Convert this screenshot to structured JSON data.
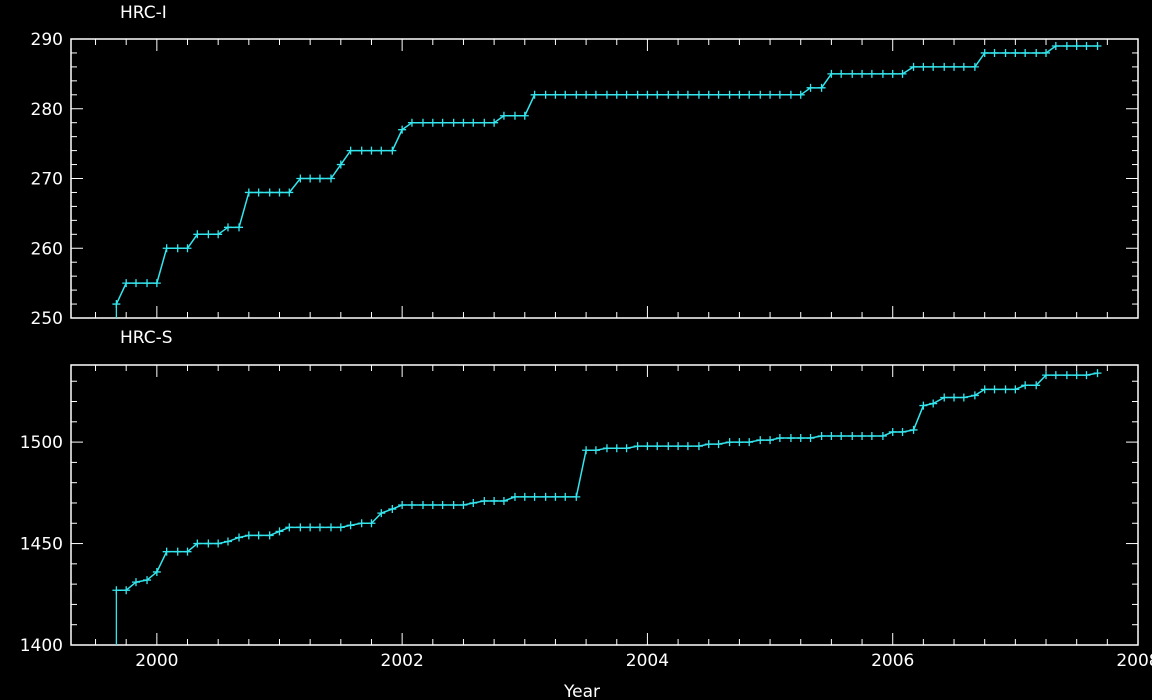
{
  "colors": {
    "background": "#000000",
    "axes": "#ffffff",
    "series": "#33e6ee"
  },
  "xlabel": "Year",
  "chart_data": [
    {
      "type": "line",
      "title": "HRC-I",
      "xlim": [
        1999.3,
        2008.0
      ],
      "ylim": [
        250,
        290
      ],
      "xticks": [
        2000,
        2002,
        2004,
        2006,
        2008
      ],
      "yticks": [
        250,
        260,
        270,
        280,
        290
      ],
      "series": [
        {
          "x": [
            1999.67,
            1999.75,
            1999.83,
            1999.92,
            2000.0,
            2000.08,
            2000.17,
            2000.25,
            2000.33,
            2000.42,
            2000.5,
            2000.58,
            2000.67,
            2000.75,
            2000.83,
            2000.92,
            2001.0,
            2001.08,
            2001.17,
            2001.25,
            2001.33,
            2001.42,
            2001.5,
            2001.58,
            2001.67,
            2001.75,
            2001.83,
            2001.92,
            2002.0,
            2002.08,
            2002.17,
            2002.25,
            2002.33,
            2002.42,
            2002.5,
            2002.58,
            2002.67,
            2002.75,
            2002.83,
            2002.92,
            2003.0,
            2003.08,
            2003.17,
            2003.25,
            2003.33,
            2003.42,
            2003.5,
            2003.58,
            2003.67,
            2003.75,
            2003.83,
            2003.92,
            2004.0,
            2004.08,
            2004.17,
            2004.25,
            2004.33,
            2004.42,
            2004.5,
            2004.58,
            2004.67,
            2004.75,
            2004.83,
            2004.92,
            2005.0,
            2005.08,
            2005.17,
            2005.25,
            2005.33,
            2005.42,
            2005.5,
            2005.58,
            2005.67,
            2005.75,
            2005.83,
            2005.92,
            2006.0,
            2006.08,
            2006.17,
            2006.25,
            2006.33,
            2006.42,
            2006.5,
            2006.58,
            2006.67,
            2006.75,
            2006.83,
            2006.92,
            2007.0,
            2007.08,
            2007.17,
            2007.25,
            2007.33,
            2007.42,
            2007.5,
            2007.58,
            2007.67
          ],
          "values": [
            252,
            255,
            255,
            255,
            255,
            260,
            260,
            260,
            262,
            262,
            262,
            263,
            263,
            268,
            268,
            268,
            268,
            268,
            270,
            270,
            270,
            270,
            272,
            274,
            274,
            274,
            274,
            274,
            277,
            278,
            278,
            278,
            278,
            278,
            278,
            278,
            278,
            278,
            279,
            279,
            279,
            282,
            282,
            282,
            282,
            282,
            282,
            282,
            282,
            282,
            282,
            282,
            282,
            282,
            282,
            282,
            282,
            282,
            282,
            282,
            282,
            282,
            282,
            282,
            282,
            282,
            282,
            282,
            283,
            283,
            285,
            285,
            285,
            285,
            285,
            285,
            285,
            285,
            286,
            286,
            286,
            286,
            286,
            286,
            286,
            288,
            288,
            288,
            288,
            288,
            288,
            288,
            289,
            289,
            289,
            289,
            289
          ]
        }
      ]
    },
    {
      "type": "line",
      "title": "HRC-S",
      "xlim": [
        1999.3,
        2008.0
      ],
      "ylim": [
        1400,
        1538
      ],
      "xticks": [
        2000,
        2002,
        2004,
        2006,
        2008
      ],
      "yticks": [
        1400,
        1450,
        1500
      ],
      "series": [
        {
          "x": [
            1999.67,
            1999.75,
            1999.83,
            1999.92,
            2000.0,
            2000.08,
            2000.17,
            2000.25,
            2000.33,
            2000.42,
            2000.5,
            2000.58,
            2000.67,
            2000.75,
            2000.83,
            2000.92,
            2001.0,
            2001.08,
            2001.17,
            2001.25,
            2001.33,
            2001.42,
            2001.5,
            2001.58,
            2001.67,
            2001.75,
            2001.83,
            2001.92,
            2002.0,
            2002.08,
            2002.17,
            2002.25,
            2002.33,
            2002.42,
            2002.5,
            2002.58,
            2002.67,
            2002.75,
            2002.83,
            2002.92,
            2003.0,
            2003.08,
            2003.17,
            2003.25,
            2003.33,
            2003.42,
            2003.5,
            2003.58,
            2003.67,
            2003.75,
            2003.83,
            2003.92,
            2004.0,
            2004.08,
            2004.17,
            2004.25,
            2004.33,
            2004.42,
            2004.5,
            2004.58,
            2004.67,
            2004.75,
            2004.83,
            2004.92,
            2005.0,
            2005.08,
            2005.17,
            2005.25,
            2005.33,
            2005.42,
            2005.5,
            2005.58,
            2005.67,
            2005.75,
            2005.83,
            2005.92,
            2006.0,
            2006.08,
            2006.17,
            2006.25,
            2006.33,
            2006.42,
            2006.5,
            2006.58,
            2006.67,
            2006.75,
            2006.83,
            2006.92,
            2007.0,
            2007.08,
            2007.17,
            2007.25,
            2007.33,
            2007.42,
            2007.5,
            2007.58,
            2007.67
          ],
          "values": [
            1427,
            1427,
            1431,
            1432,
            1436,
            1446,
            1446,
            1446,
            1450,
            1450,
            1450,
            1451,
            1453,
            1454,
            1454,
            1454,
            1456,
            1458,
            1458,
            1458,
            1458,
            1458,
            1458,
            1459,
            1460,
            1460,
            1465,
            1467,
            1469,
            1469,
            1469,
            1469,
            1469,
            1469,
            1469,
            1470,
            1471,
            1471,
            1471,
            1473,
            1473,
            1473,
            1473,
            1473,
            1473,
            1473,
            1496,
            1496,
            1497,
            1497,
            1497,
            1498,
            1498,
            1498,
            1498,
            1498,
            1498,
            1498,
            1499,
            1499,
            1500,
            1500,
            1500,
            1501,
            1501,
            1502,
            1502,
            1502,
            1502,
            1503,
            1503,
            1503,
            1503,
            1503,
            1503,
            1503,
            1505,
            1505,
            1506,
            1518,
            1519,
            1522,
            1522,
            1522,
            1523,
            1526,
            1526,
            1526,
            1526,
            1528,
            1528,
            1533,
            1533,
            1533,
            1533,
            1533,
            1534
          ]
        }
      ]
    }
  ]
}
